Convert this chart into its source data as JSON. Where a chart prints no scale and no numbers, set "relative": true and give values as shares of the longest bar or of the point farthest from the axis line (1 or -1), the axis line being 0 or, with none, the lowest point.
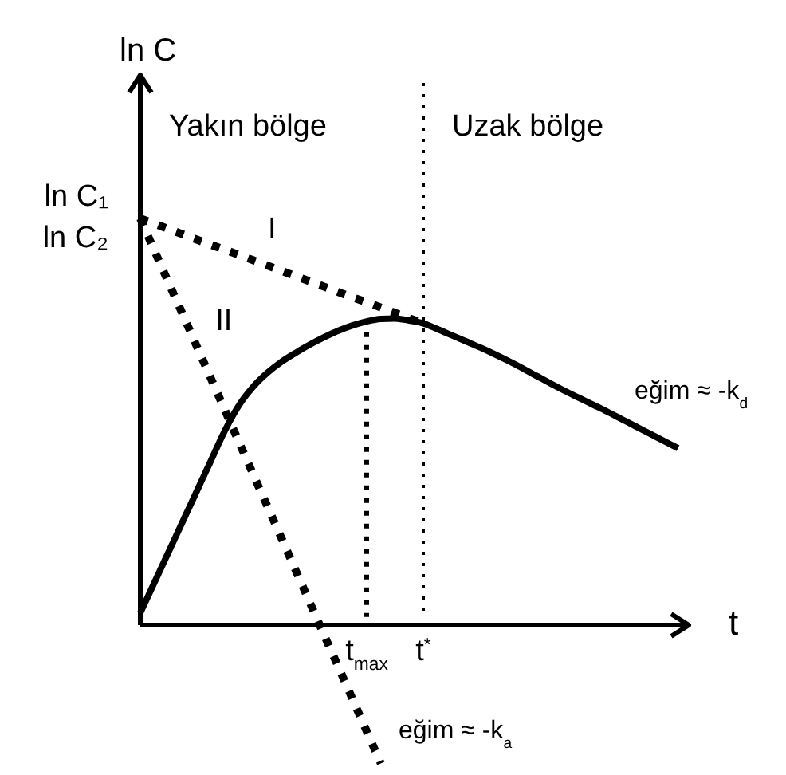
{
  "chart_data": {
    "type": "line",
    "relative": true,
    "xlabel": "t",
    "ylabel": "ln C",
    "categories": [
      null,
      null,
      null,
      null,
      null,
      null,
      null,
      null,
      null,
      null,
      null,
      null,
      null,
      null,
      null,
      null,
      "t$_{max}$",
      null,
      null,
      null,
      "t$^{*}$",
      null,
      null,
      null,
      null,
      null,
      null,
      null,
      null,
      null,
      null,
      null,
      null,
      null,
      null,
      null,
      null,
      null,
      null
    ],
    "series": [
      {
        "color": "#000000",
        "line_style": "solid",
        "values": [
          0.03,
          0.105,
          0.18,
          0.255,
          0.33,
          0.405,
          0.48,
          0.542,
          0.587,
          0.621,
          0.648,
          0.67,
          0.69,
          0.708,
          0.724,
          0.737,
          0.747,
          0.753,
          0.754,
          0.749,
          0.742,
          0.728,
          0.713,
          0.698,
          0.683,
          0.667,
          0.65,
          0.632,
          0.613,
          0.594,
          0.576,
          0.559,
          0.542,
          0.525,
          0.507,
          0.489,
          0.471,
          0.453,
          0.435
        ]
      },
      {
        "name": "I",
        "color": "#000000",
        "line_style": "dotted",
        "values": [
          1,
          0.987,
          0.974,
          0.961,
          0.948,
          0.935,
          0.923,
          0.91,
          0.897,
          0.884,
          0.871,
          0.858,
          0.845,
          0.832,
          0.819,
          0.806,
          0.794,
          0.781,
          0.768,
          0.755,
          0.742,
          null,
          null,
          null,
          null,
          null,
          null,
          null,
          null,
          null,
          null,
          null,
          null,
          null,
          null,
          null,
          null,
          null,
          null
        ]
      },
      {
        "name": "II",
        "color": "#000000",
        "line_style": "dotted",
        "values": [
          1,
          0.921,
          0.842,
          0.764,
          0.685,
          0.606,
          0.527,
          0.448,
          0.369,
          0.291,
          0.212,
          0.133,
          0.054,
          -0.025,
          -0.103,
          -0.182,
          -0.261,
          -0.34,
          null,
          null,
          null,
          null,
          null,
          null,
          null,
          null,
          null,
          null,
          null,
          null,
          null,
          null,
          null,
          null,
          null,
          null,
          null,
          null,
          null
        ]
      },
      {
        "color": "#000000",
        "line_style": "dotted",
        "x": [
          "t$_{max}$",
          "t$_{max}$"
        ],
        "values": [
          0.72,
          0.02
        ]
      }
    ],
    "ref_lines": [
      {
        "axis": "x",
        "value": "t$^{*}$",
        "line_style": "dotted",
        "color": "#000000"
      }
    ],
    "annotations": [
      "Yakın bölge",
      "Uzak bölge",
      "ln C₁",
      "ln C₂",
      "eğim ≈ -k$_{d}$",
      "eğim ≈ -k$_{a}$"
    ]
  }
}
